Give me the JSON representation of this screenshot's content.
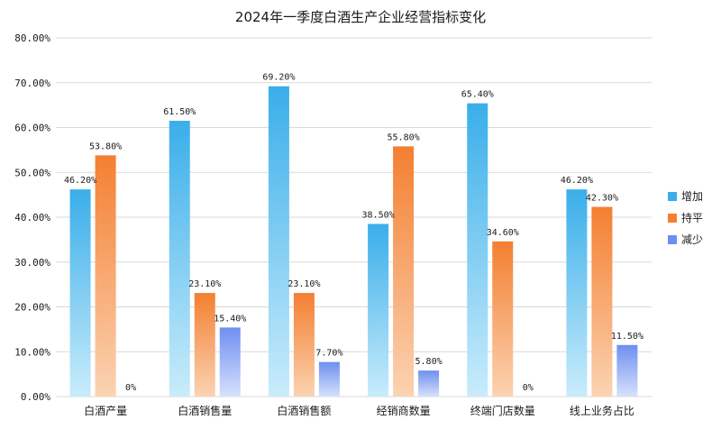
{
  "chart_data": {
    "type": "bar",
    "title": "2024年一季度白酒生产企业经营指标变化",
    "categories": [
      "白酒产量",
      "白酒销售量",
      "白酒销售额",
      "经销商数量",
      "终端门店数量",
      "线上业务占比"
    ],
    "series": [
      {
        "name": "增加",
        "color_top": "#3aaeea",
        "color_bottom": "#c9ecfb",
        "values": [
          46.2,
          61.5,
          69.2,
          38.5,
          65.4,
          46.2
        ],
        "labels": [
          "46.20%",
          "61.50%",
          "69.20%",
          "38.50%",
          "65.40%",
          "46.20%"
        ]
      },
      {
        "name": "持平",
        "color_top": "#f47f31",
        "color_bottom": "#fbd3b2",
        "values": [
          53.8,
          23.1,
          23.1,
          55.8,
          34.6,
          42.3
        ],
        "labels": [
          "53.80%",
          "23.10%",
          "23.10%",
          "55.80%",
          "34.60%",
          "42.30%"
        ]
      },
      {
        "name": "减少",
        "color_top": "#6f8ff0",
        "color_bottom": "#d6e1fb",
        "values": [
          0,
          15.4,
          7.7,
          5.8,
          0,
          11.5
        ],
        "labels": [
          "0%",
          "15.40%",
          "7.70%",
          "5.80%",
          "0%",
          "11.50%"
        ]
      }
    ],
    "ylim": [
      0,
      80
    ],
    "y_ticks": [
      "0.00%",
      "10.00%",
      "20.00%",
      "30.00%",
      "40.00%",
      "50.00%",
      "60.00%",
      "70.00%",
      "80.00%"
    ],
    "grid": true,
    "legend_position": "right"
  }
}
